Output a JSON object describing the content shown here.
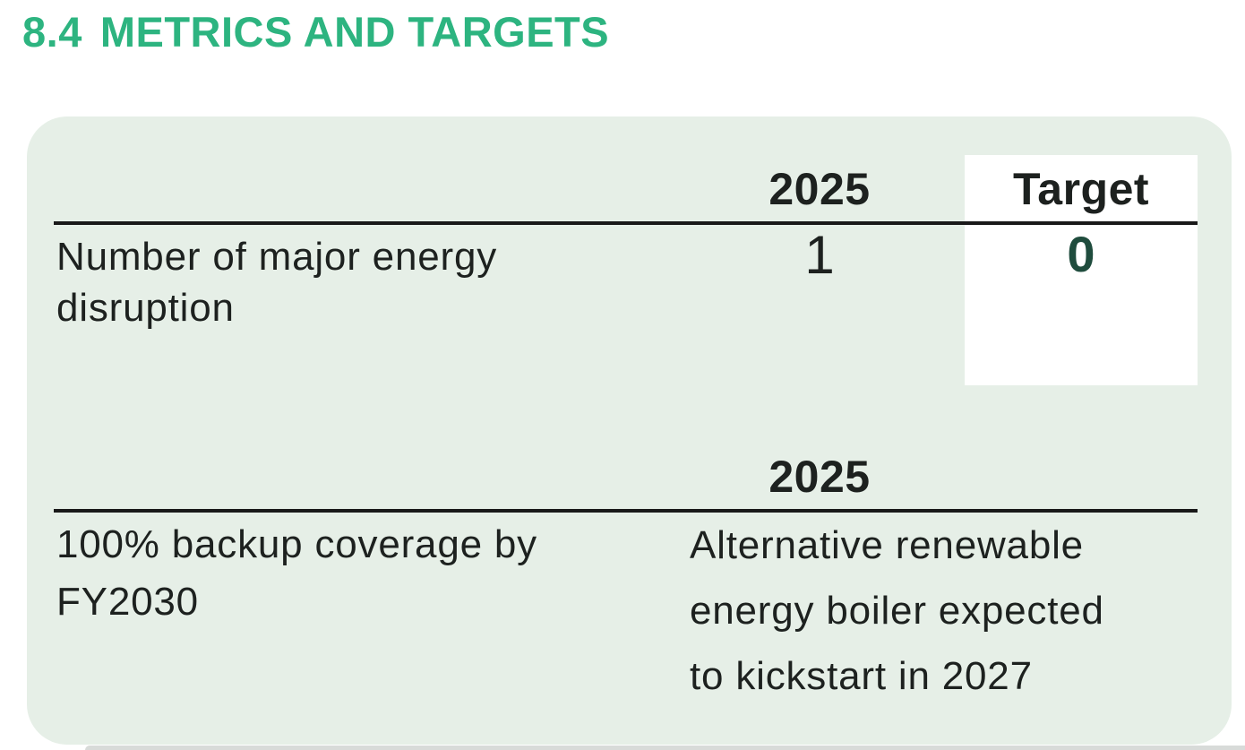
{
  "section": {
    "number": "8.4",
    "title": "METRICS AND TARGETS"
  },
  "colors": {
    "accent_green": "#2db480",
    "panel_background": "#e6efe7",
    "body_text": "#1d211f",
    "target_value_green": "#1f4c3d",
    "table_rule": "#191919",
    "target_highlight_cell": "#ffffff",
    "bottom_strip_grey": "#d8dbd9"
  },
  "tables": [
    {
      "column_headers": [
        "2025",
        "Target"
      ],
      "rows": [
        {
          "label": "Number of major energy\ndisruption",
          "value_2025": "1",
          "value_target": "0"
        }
      ]
    },
    {
      "column_headers": [
        "2025"
      ],
      "rows": [
        {
          "label": "100% backup coverage by\nFY2030",
          "value_2025": "Alternative renewable\nenergy boiler expected\nto kickstart in 2027"
        }
      ]
    }
  ]
}
